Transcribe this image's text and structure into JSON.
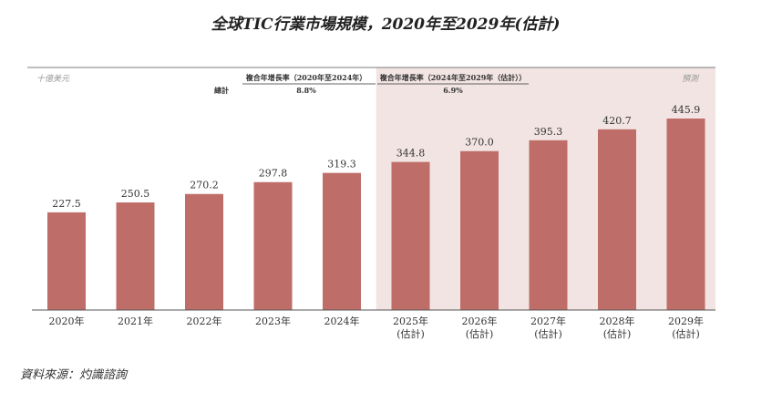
{
  "chart_data": {
    "type": "bar",
    "title": "全球TIC行業市場規模，2020年至2029年(估計)",
    "unit_label": "十億美元",
    "forecast_label": "預測",
    "categories": [
      "2020年",
      "2021年",
      "2022年",
      "2023年",
      "2024年",
      "2025年",
      "2026年",
      "2027年",
      "2028年",
      "2029年"
    ],
    "category_sublabels": [
      "",
      "",
      "",
      "",
      "",
      "(估計)",
      "(估計)",
      "(估計)",
      "(估計)",
      "(估計)"
    ],
    "values": [
      227.5,
      250.5,
      270.2,
      297.8,
      319.3,
      344.8,
      370.0,
      395.3,
      420.7,
      445.9
    ],
    "value_labels": [
      "227.5",
      "250.5",
      "270.2",
      "297.8",
      "319.3",
      "344.8",
      "370.0",
      "395.3",
      "420.7",
      "445.9"
    ],
    "forecast_from_index": 5,
    "ylim": [
      0,
      500
    ],
    "cagr_row_label": "總計",
    "cagr": [
      {
        "header": "複合年增長率（2020年至2024年）",
        "value": "8.8%"
      },
      {
        "header": "複合年增長率（2024年至2029年（估計））",
        "value": "6.9%"
      }
    ],
    "colors": {
      "bar": "#bf6d68",
      "forecast_bg": "#f2e4e3",
      "text": "#333333",
      "axis": "#555555"
    }
  },
  "source": "資料來源：灼識諮詢"
}
